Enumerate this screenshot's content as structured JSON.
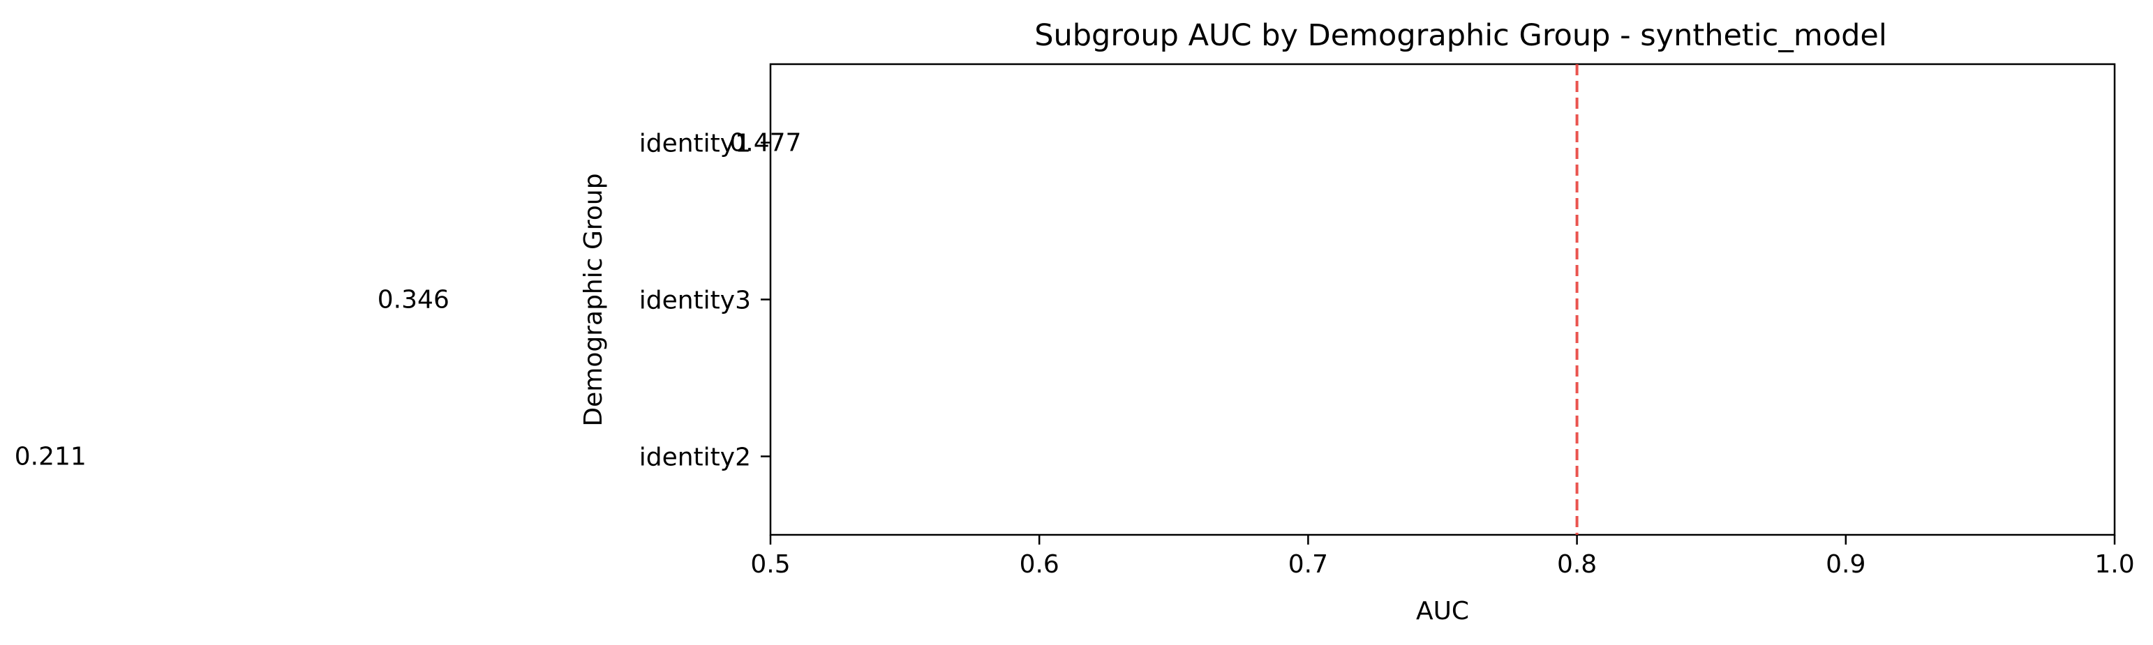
{
  "chart_data": {
    "type": "bar",
    "orientation": "horizontal",
    "title": "Subgroup AUC by Demographic Group - synthetic_model",
    "xlabel": "AUC",
    "ylabel": "Demographic Group",
    "categories": [
      "identity1",
      "identity3",
      "identity2"
    ],
    "values": [
      0.477,
      0.346,
      0.211
    ],
    "value_labels": [
      "0.477",
      "0.346",
      "0.211"
    ],
    "xlim": [
      0.5,
      1.0
    ],
    "xticks": [
      0.5,
      0.6,
      0.7,
      0.8,
      0.9,
      1.0
    ],
    "xtick_labels": [
      "0.5",
      "0.6",
      "0.7",
      "0.8",
      "0.9",
      "1.0"
    ],
    "reference_line": {
      "x": 0.8,
      "style": "dashed",
      "color": "#e8413c"
    },
    "grid": false,
    "legend": "none"
  }
}
